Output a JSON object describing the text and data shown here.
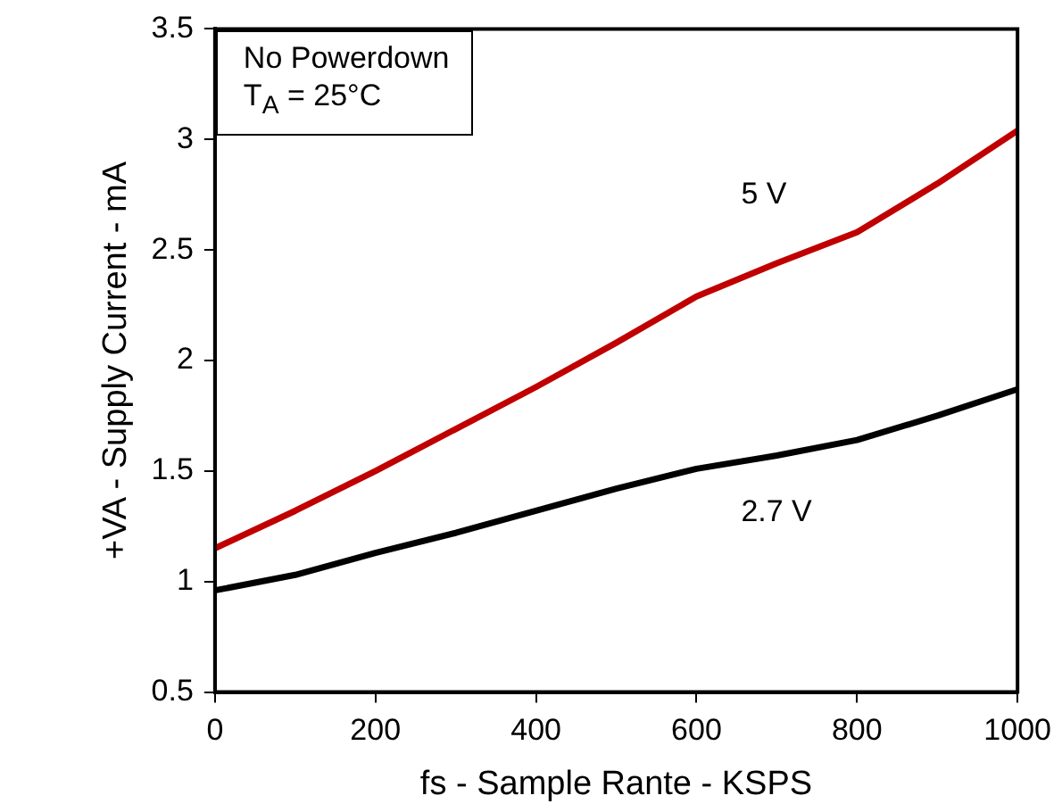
{
  "chart_data": {
    "type": "line",
    "xlabel": "fs - Sample Rante - KSPS",
    "ylabel": "+VA - Supply Current - mA",
    "xlim": [
      0,
      1000
    ],
    "xticks": [
      0,
      200,
      400,
      600,
      800,
      1000
    ],
    "ylim": [
      0.5,
      3.5
    ],
    "yticks": [
      0.5,
      1,
      1.5,
      2,
      2.5,
      3,
      3.5
    ],
    "grid": false,
    "legend": false,
    "marker": "none",
    "line_style": "solid",
    "x": [
      0,
      100,
      200,
      300,
      400,
      500,
      600,
      700,
      800,
      900,
      1000
    ],
    "series": [
      {
        "name": "5 V",
        "color": "#c00000",
        "values": [
          1.15,
          1.32,
          1.5,
          1.69,
          1.88,
          2.08,
          2.29,
          2.44,
          2.58,
          2.8,
          3.04
        ]
      },
      {
        "name": "2.7 V",
        "color": "#000000",
        "values": [
          0.96,
          1.03,
          1.13,
          1.22,
          1.32,
          1.42,
          1.51,
          1.57,
          1.64,
          1.75,
          1.87
        ]
      }
    ],
    "annotations": [
      "No Powerdown",
      "T$_{A}$ = 25°C"
    ]
  }
}
